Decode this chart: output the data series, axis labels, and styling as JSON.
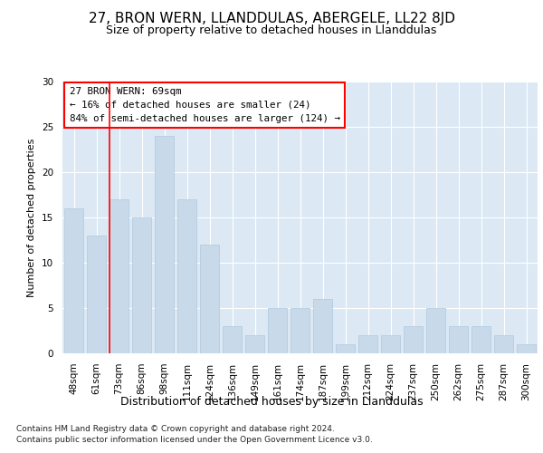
{
  "title1": "27, BRON WERN, LLANDDULAS, ABERGELE, LL22 8JD",
  "title2": "Size of property relative to detached houses in Llanddulas",
  "xlabel": "Distribution of detached houses by size in Llanddulas",
  "ylabel": "Number of detached properties",
  "categories": [
    "48sqm",
    "61sqm",
    "73sqm",
    "86sqm",
    "98sqm",
    "111sqm",
    "124sqm",
    "136sqm",
    "149sqm",
    "161sqm",
    "174sqm",
    "187sqm",
    "199sqm",
    "212sqm",
    "224sqm",
    "237sqm",
    "250sqm",
    "262sqm",
    "275sqm",
    "287sqm",
    "300sqm"
  ],
  "values": [
    16,
    13,
    17,
    15,
    24,
    17,
    12,
    3,
    2,
    5,
    5,
    6,
    1,
    2,
    2,
    3,
    5,
    3,
    3,
    2,
    1
  ],
  "bar_color": "#c8daea",
  "bar_edge_color": "#aec8de",
  "ylim": [
    0,
    30
  ],
  "yticks": [
    0,
    5,
    10,
    15,
    20,
    25,
    30
  ],
  "annotation_text": "27 BRON WERN: 69sqm\n← 16% of detached houses are smaller (24)\n84% of semi-detached houses are larger (124) →",
  "footer1": "Contains HM Land Registry data © Crown copyright and database right 2024.",
  "footer2": "Contains public sector information licensed under the Open Government Licence v3.0.",
  "fig_background": "#ffffff",
  "plot_background": "#dce9f5",
  "grid_color": "#ffffff",
  "title1_fontsize": 11,
  "title2_fontsize": 9,
  "ylabel_fontsize": 8,
  "xlabel_fontsize": 9,
  "tick_fontsize": 7.5,
  "footer_fontsize": 6.5
}
